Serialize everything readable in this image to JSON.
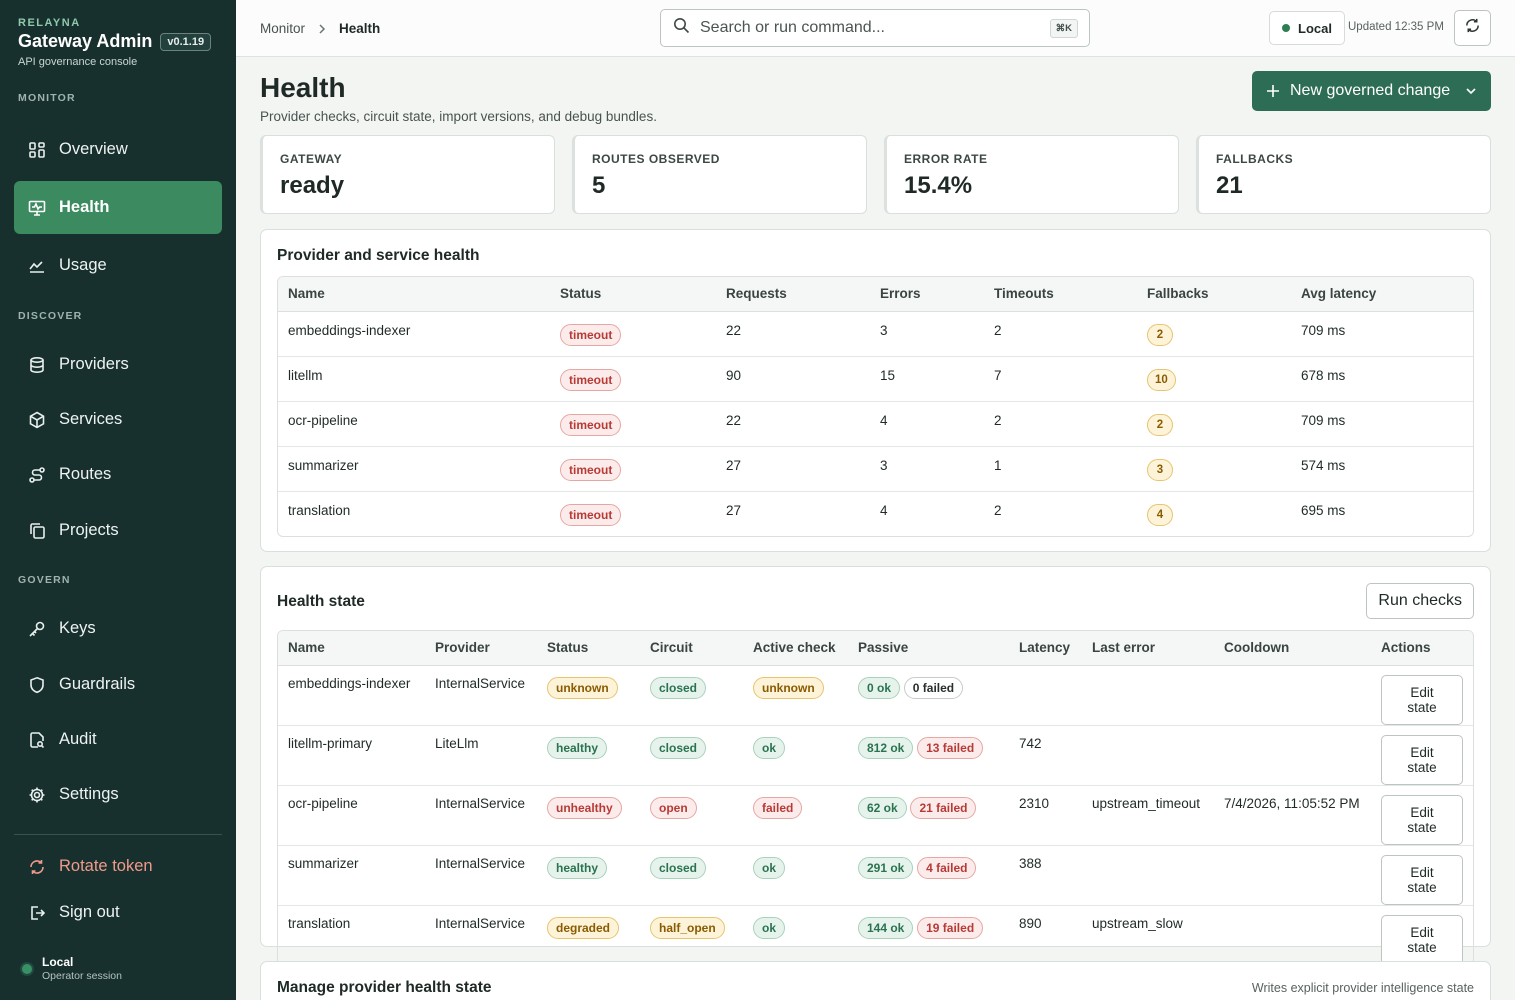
{
  "brand": {
    "kicker": "RELAYNA",
    "title": "Gateway Admin",
    "version": "v0.1.19",
    "subtitle": "API governance console"
  },
  "sidebar": {
    "sections": [
      "MONITOR",
      "DISCOVER",
      "GOVERN"
    ],
    "items": [
      {
        "label": "Overview",
        "icon": "grid-icon"
      },
      {
        "label": "Health",
        "icon": "monitor-icon"
      },
      {
        "label": "Usage",
        "icon": "chart-line-icon"
      },
      {
        "label": "Providers",
        "icon": "database-icon"
      },
      {
        "label": "Services",
        "icon": "cube-icon"
      },
      {
        "label": "Routes",
        "icon": "route-icon"
      },
      {
        "label": "Projects",
        "icon": "copy-icon"
      },
      {
        "label": "Keys",
        "icon": "key-icon"
      },
      {
        "label": "Guardrails",
        "icon": "shield-icon"
      },
      {
        "label": "Audit",
        "icon": "file-search-icon"
      },
      {
        "label": "Settings",
        "icon": "gear-icon"
      }
    ],
    "rotate_label": "Rotate token",
    "signout_label": "Sign out",
    "session": {
      "name": "Local",
      "sub": "Operator session"
    }
  },
  "breadcrumb": {
    "parent": "Monitor",
    "current": "Health"
  },
  "search": {
    "placeholder": "Search or run command...",
    "shortcut": "⌘K"
  },
  "env": {
    "label": "Local"
  },
  "updated": "Updated 12:35 PM",
  "page": {
    "title": "Health",
    "subtitle": "Provider checks, circuit state, import versions, and debug bundles.",
    "new_button": "New governed change"
  },
  "stats": [
    {
      "label": "GATEWAY",
      "value": "ready"
    },
    {
      "label": "ROUTES OBSERVED",
      "value": "5"
    },
    {
      "label": "ERROR RATE",
      "value": "15.4%"
    },
    {
      "label": "FALLBACKS",
      "value": "21"
    }
  ],
  "provider_health": {
    "title": "Provider and service health",
    "columns": [
      "Name",
      "Status",
      "Requests",
      "Errors",
      "Timeouts",
      "Fallbacks",
      "Avg latency"
    ],
    "rows": [
      {
        "name": "embeddings-indexer",
        "status": "timeout",
        "requests": "22",
        "errors": "3",
        "timeouts": "2",
        "fallbacks": "2",
        "latency": "709 ms"
      },
      {
        "name": "litellm",
        "status": "timeout",
        "requests": "90",
        "errors": "15",
        "timeouts": "7",
        "fallbacks": "10",
        "latency": "678 ms"
      },
      {
        "name": "ocr-pipeline",
        "status": "timeout",
        "requests": "22",
        "errors": "4",
        "timeouts": "2",
        "fallbacks": "2",
        "latency": "709 ms"
      },
      {
        "name": "summarizer",
        "status": "timeout",
        "requests": "27",
        "errors": "3",
        "timeouts": "1",
        "fallbacks": "3",
        "latency": "574 ms"
      },
      {
        "name": "translation",
        "status": "timeout",
        "requests": "27",
        "errors": "4",
        "timeouts": "2",
        "fallbacks": "4",
        "latency": "695 ms"
      }
    ]
  },
  "health_state": {
    "title": "Health state",
    "run_button": "Run checks",
    "columns": [
      "Name",
      "Provider",
      "Status",
      "Circuit",
      "Active check",
      "Passive",
      "Latency",
      "Last error",
      "Cooldown",
      "Actions"
    ],
    "rows": [
      {
        "name": "embeddings-indexer",
        "provider": "InternalService",
        "status": "unknown",
        "circuit": "closed",
        "active": "unknown",
        "ok": "0 ok",
        "failed": "0 failed",
        "latency": "",
        "last_error": "",
        "cooldown": "",
        "action": "Edit state"
      },
      {
        "name": "litellm-primary",
        "provider": "LiteLlm",
        "status": "healthy",
        "circuit": "closed",
        "active": "ok",
        "ok": "812 ok",
        "failed": "13 failed",
        "latency": "742",
        "last_error": "",
        "cooldown": "",
        "action": "Edit state"
      },
      {
        "name": "ocr-pipeline",
        "provider": "InternalService",
        "status": "unhealthy",
        "circuit": "open",
        "active": "failed",
        "ok": "62 ok",
        "failed": "21 failed",
        "latency": "2310",
        "last_error": "upstream_timeout",
        "cooldown": "7/4/2026, 11:05:52 PM",
        "action": "Edit state"
      },
      {
        "name": "summarizer",
        "provider": "InternalService",
        "status": "healthy",
        "circuit": "closed",
        "active": "ok",
        "ok": "291 ok",
        "failed": "4 failed",
        "latency": "388",
        "last_error": "",
        "cooldown": "",
        "action": "Edit state"
      },
      {
        "name": "translation",
        "provider": "InternalService",
        "status": "degraded",
        "circuit": "half_open",
        "active": "ok",
        "ok": "144 ok",
        "failed": "19 failed",
        "latency": "890",
        "last_error": "upstream_slow",
        "cooldown": "",
        "action": "Edit state"
      }
    ]
  },
  "manage": {
    "title": "Manage provider health state",
    "note": "Writes explicit provider intelligence state"
  }
}
